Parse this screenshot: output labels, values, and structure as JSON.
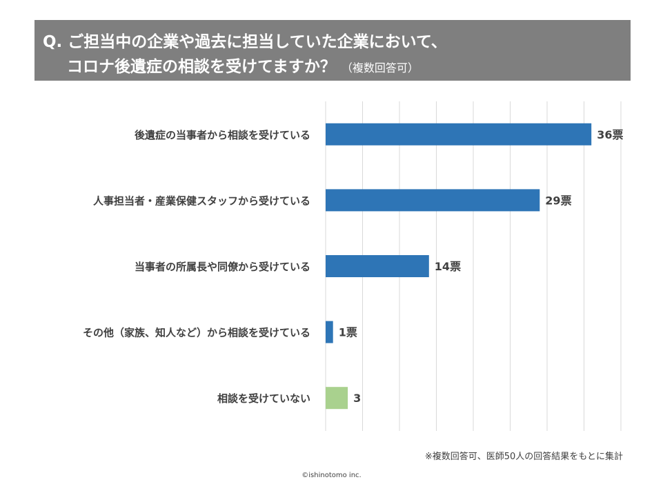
{
  "header": {
    "line1": "Q. ご担当中の企業や過去に担当していた企業において、",
    "line2": "コロナ後遺症の相談を受けてますか？",
    "sub": "（複数回答可）"
  },
  "chart_data": {
    "type": "bar",
    "orientation": "horizontal",
    "categories": [
      "後遺症の当事者から相談を受けている",
      "人事担当者・産業保健スタッフから受けている",
      "当事者の所属長や同僚から受けている",
      "その他（家族、知人など）から相談を受けている",
      "相談を受けていない"
    ],
    "values": [
      36,
      29,
      14,
      1,
      3
    ],
    "value_labels": [
      "36票",
      "29票",
      "14票",
      "1票",
      "3"
    ],
    "colors": [
      "#2e75b6",
      "#2e75b6",
      "#2e75b6",
      "#2e75b6",
      "#a9d18e"
    ],
    "xlim": [
      0,
      40
    ],
    "grid": true
  },
  "footer": {
    "note": "※複数回答可、医師50人の回答結果をもとに集計",
    "copyright": "©ishinotomo inc."
  }
}
